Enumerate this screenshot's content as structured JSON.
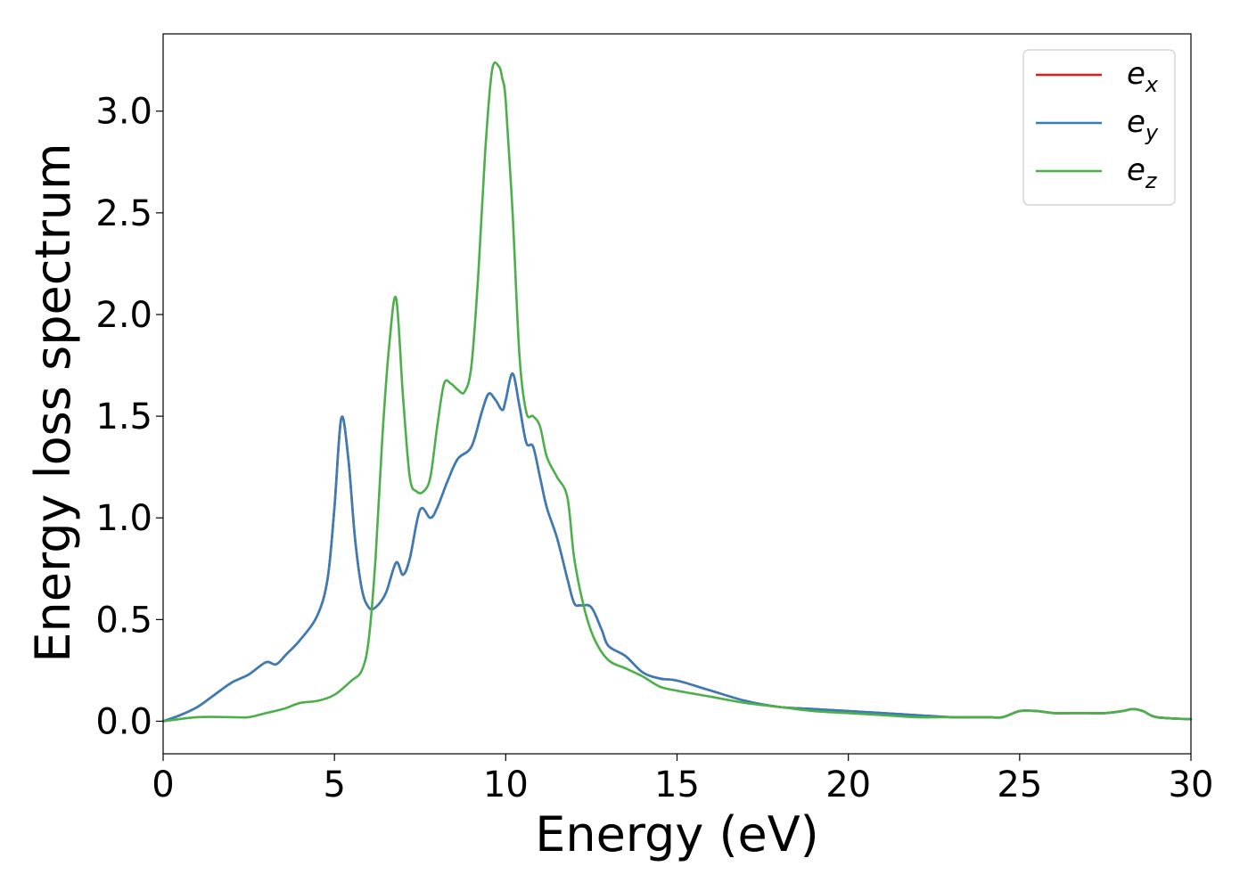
{
  "chart_data": {
    "type": "line",
    "xlabel": "Energy (eV)",
    "ylabel": "Energy loss spectrum",
    "xlim": [
      0,
      30
    ],
    "ylim": [
      -0.16,
      3.38
    ],
    "xticks": [
      0,
      5,
      10,
      15,
      20,
      25,
      30
    ],
    "yticks": [
      0.0,
      0.5,
      1.0,
      1.5,
      2.0,
      2.5,
      3.0
    ],
    "xtick_labels": [
      "0",
      "5",
      "10",
      "15",
      "20",
      "25",
      "30"
    ],
    "ytick_labels": [
      "0.0",
      "0.5",
      "1.0",
      "1.5",
      "2.0",
      "2.5",
      "3.0"
    ],
    "grid": false,
    "legend_position": "top-right",
    "series": [
      {
        "name": "e_x",
        "legend_base": "e",
        "legend_sub": "x",
        "color": "#e41a1c",
        "x": [
          0,
          0.5,
          1.0,
          1.5,
          2.0,
          2.5,
          3.0,
          3.3,
          3.6,
          4.0,
          4.5,
          4.8,
          5.0,
          5.2,
          5.4,
          5.6,
          5.8,
          6.0,
          6.2,
          6.5,
          6.8,
          7.0,
          7.2,
          7.5,
          7.8,
          8.0,
          8.3,
          8.6,
          9.0,
          9.3,
          9.5,
          9.7,
          9.9,
          10.0,
          10.2,
          10.4,
          10.6,
          10.8,
          11.0,
          11.2,
          11.5,
          11.8,
          12.0,
          12.2,
          12.5,
          12.8,
          13.0,
          13.5,
          14.0,
          14.5,
          15.0,
          16.0,
          17.0,
          18.0,
          19.0,
          20.0,
          21.0,
          22.0,
          23.0,
          24.0,
          24.5,
          25.0,
          25.5,
          26.0,
          26.5,
          27.0,
          27.5,
          28.0,
          28.3,
          28.6,
          29.0,
          30.0
        ],
        "values": [
          0.0,
          0.03,
          0.07,
          0.13,
          0.19,
          0.23,
          0.29,
          0.28,
          0.33,
          0.4,
          0.52,
          0.7,
          1.05,
          1.49,
          1.3,
          0.9,
          0.65,
          0.56,
          0.56,
          0.63,
          0.78,
          0.72,
          0.8,
          1.04,
          1.0,
          1.05,
          1.18,
          1.29,
          1.35,
          1.52,
          1.61,
          1.58,
          1.53,
          1.58,
          1.71,
          1.55,
          1.37,
          1.35,
          1.2,
          1.05,
          0.9,
          0.7,
          0.58,
          0.57,
          0.56,
          0.45,
          0.37,
          0.32,
          0.24,
          0.21,
          0.2,
          0.15,
          0.1,
          0.07,
          0.06,
          0.05,
          0.04,
          0.03,
          0.02,
          0.02,
          0.02,
          0.05,
          0.05,
          0.04,
          0.04,
          0.04,
          0.04,
          0.05,
          0.06,
          0.05,
          0.02,
          0.01
        ]
      },
      {
        "name": "e_y",
        "legend_base": "e",
        "legend_sub": "y",
        "color": "#377eb8",
        "x": [
          0,
          0.5,
          1.0,
          1.5,
          2.0,
          2.5,
          3.0,
          3.3,
          3.6,
          4.0,
          4.5,
          4.8,
          5.0,
          5.2,
          5.4,
          5.6,
          5.8,
          6.0,
          6.2,
          6.5,
          6.8,
          7.0,
          7.2,
          7.5,
          7.8,
          8.0,
          8.3,
          8.6,
          9.0,
          9.3,
          9.5,
          9.7,
          9.9,
          10.0,
          10.2,
          10.4,
          10.6,
          10.8,
          11.0,
          11.2,
          11.5,
          11.8,
          12.0,
          12.2,
          12.5,
          12.8,
          13.0,
          13.5,
          14.0,
          14.5,
          15.0,
          16.0,
          17.0,
          18.0,
          19.0,
          20.0,
          21.0,
          22.0,
          23.0,
          24.0,
          24.5,
          25.0,
          25.5,
          26.0,
          26.5,
          27.0,
          27.5,
          28.0,
          28.3,
          28.6,
          29.0,
          30.0
        ],
        "values": [
          0.0,
          0.03,
          0.07,
          0.13,
          0.19,
          0.23,
          0.29,
          0.28,
          0.33,
          0.4,
          0.52,
          0.7,
          1.05,
          1.49,
          1.3,
          0.9,
          0.65,
          0.56,
          0.56,
          0.63,
          0.78,
          0.72,
          0.8,
          1.04,
          1.0,
          1.05,
          1.18,
          1.29,
          1.35,
          1.52,
          1.61,
          1.58,
          1.53,
          1.58,
          1.71,
          1.55,
          1.37,
          1.35,
          1.2,
          1.05,
          0.9,
          0.7,
          0.58,
          0.57,
          0.56,
          0.45,
          0.37,
          0.32,
          0.24,
          0.21,
          0.2,
          0.15,
          0.1,
          0.07,
          0.06,
          0.05,
          0.04,
          0.03,
          0.02,
          0.02,
          0.02,
          0.05,
          0.05,
          0.04,
          0.04,
          0.04,
          0.04,
          0.05,
          0.06,
          0.05,
          0.02,
          0.01
        ]
      },
      {
        "name": "e_z",
        "legend_base": "e",
        "legend_sub": "z",
        "color": "#4daf4a",
        "x": [
          0,
          1.0,
          2.0,
          2.5,
          3.0,
          3.5,
          4.0,
          4.5,
          5.0,
          5.5,
          5.8,
          6.0,
          6.2,
          6.4,
          6.6,
          6.8,
          7.0,
          7.2,
          7.4,
          7.6,
          7.8,
          8.0,
          8.2,
          8.4,
          8.6,
          8.8,
          9.0,
          9.2,
          9.4,
          9.6,
          9.8,
          9.9,
          10.0,
          10.2,
          10.4,
          10.6,
          10.8,
          11.0,
          11.2,
          11.5,
          11.8,
          12.0,
          12.3,
          12.6,
          13.0,
          13.5,
          14.0,
          14.5,
          15.0,
          16.0,
          17.0,
          18.0,
          19.0,
          20.0,
          21.0,
          22.0,
          23.0,
          24.0,
          24.5,
          25.0,
          25.5,
          26.0,
          26.5,
          27.0,
          27.5,
          28.0,
          28.3,
          28.6,
          29.0,
          30.0
        ],
        "values": [
          0.0,
          0.02,
          0.02,
          0.02,
          0.04,
          0.06,
          0.09,
          0.1,
          0.13,
          0.2,
          0.25,
          0.4,
          0.8,
          1.4,
          1.85,
          2.08,
          1.6,
          1.2,
          1.13,
          1.13,
          1.2,
          1.45,
          1.66,
          1.66,
          1.63,
          1.62,
          1.75,
          2.2,
          2.8,
          3.2,
          3.22,
          3.16,
          3.05,
          2.5,
          1.8,
          1.52,
          1.5,
          1.45,
          1.3,
          1.2,
          1.1,
          0.8,
          0.55,
          0.4,
          0.3,
          0.26,
          0.22,
          0.17,
          0.15,
          0.12,
          0.09,
          0.07,
          0.05,
          0.04,
          0.03,
          0.02,
          0.02,
          0.02,
          0.02,
          0.05,
          0.05,
          0.04,
          0.04,
          0.04,
          0.04,
          0.05,
          0.06,
          0.05,
          0.02,
          0.01
        ]
      }
    ]
  }
}
